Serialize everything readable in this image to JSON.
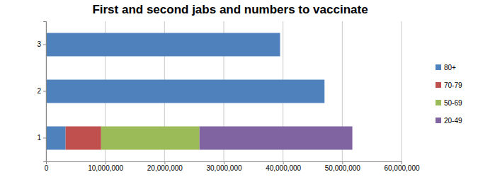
{
  "chart_data": {
    "type": "bar",
    "orientation": "horizontal",
    "stacked": true,
    "title": "First and second jabs and numbers to vaccinate",
    "categories": [
      "1",
      "2",
      "3"
    ],
    "series": [
      {
        "name": "80+",
        "color": "#4f81bd",
        "values": [
          3300000,
          47000000,
          39500000
        ]
      },
      {
        "name": "70-79",
        "color": "#c0504d",
        "values": [
          6000000,
          null,
          null
        ]
      },
      {
        "name": "50-69",
        "color": "#9bbb59",
        "values": [
          16600000,
          null,
          null
        ]
      },
      {
        "name": "20-49",
        "color": "#8064a2",
        "values": [
          25800000,
          null,
          null
        ]
      }
    ],
    "xlim": [
      0,
      60000000
    ],
    "xticks": [
      0,
      {
        "value": 10000000,
        "label": "10,000,000"
      },
      {
        "value": 20000000,
        "label": "20,000,000"
      },
      {
        "value": 30000000,
        "label": "30,000,000"
      },
      {
        "value": 40000000,
        "label": "40,000,000"
      },
      {
        "value": 50000000,
        "label": "50,000,000"
      },
      {
        "value": 60000000,
        "label": "60,000,000"
      }
    ],
    "grid": true,
    "legend": "right"
  }
}
